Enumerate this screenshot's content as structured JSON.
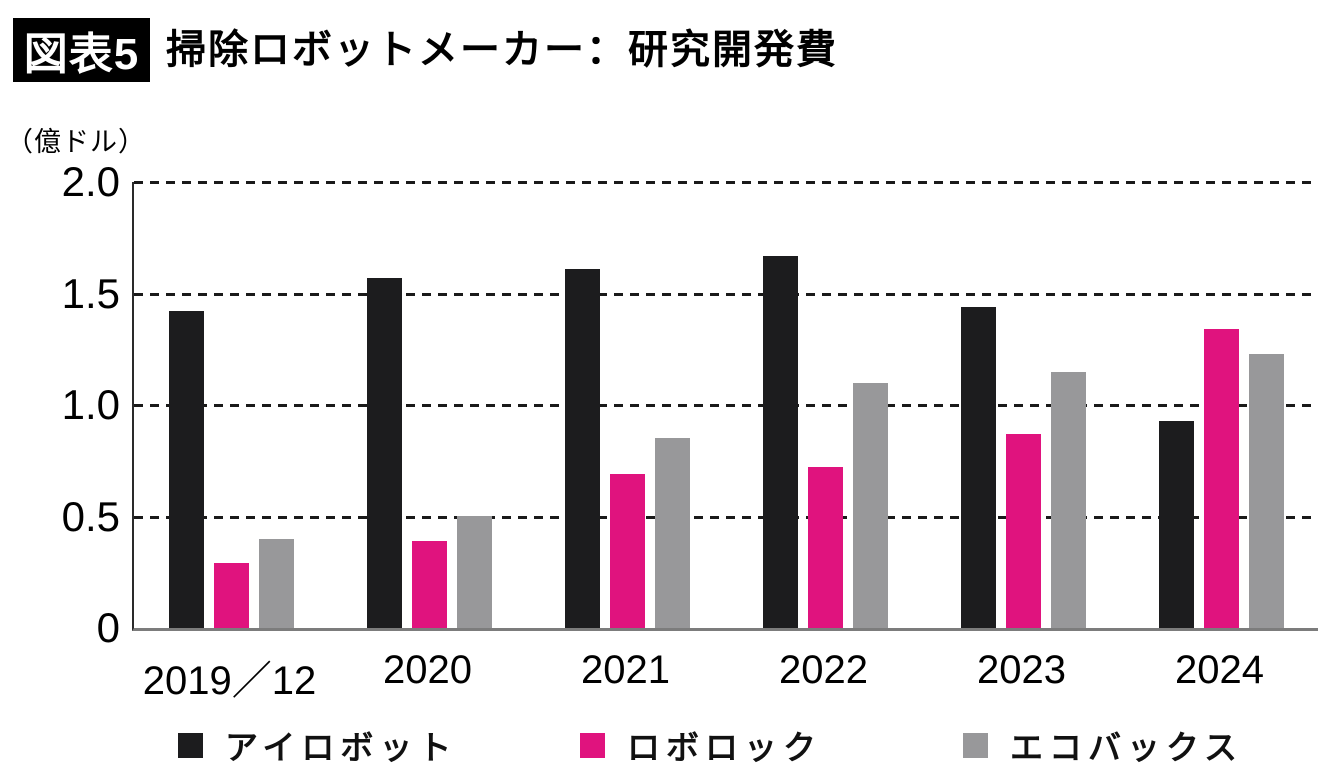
{
  "header": {
    "badge": "図表5",
    "title": "掃除ロボットメーカー：研究開発費"
  },
  "chart_data": {
    "type": "bar",
    "title": "掃除ロボットメーカー：研究開発費",
    "unit_label": "（億ドル）",
    "categories": [
      "2019／12",
      "2020",
      "2021",
      "2022",
      "2023",
      "2024"
    ],
    "series": [
      {
        "name": "アイロボット",
        "color": "#1c1c1e",
        "values": [
          1.42,
          1.57,
          1.61,
          1.67,
          1.44,
          0.93
        ]
      },
      {
        "name": "ロボロック",
        "color": "#e0137e",
        "values": [
          0.29,
          0.39,
          0.69,
          0.72,
          0.87,
          1.34
        ]
      },
      {
        "name": "エコバックス",
        "color": "#98989a",
        "values": [
          0.4,
          0.5,
          0.85,
          1.1,
          1.15,
          1.23
        ]
      }
    ],
    "ylim": [
      0,
      2.0
    ],
    "yticks": [
      0,
      0.5,
      1.0,
      1.5,
      2.0
    ],
    "ytick_labels": [
      "0",
      "0.5",
      "1.0",
      "1.5",
      "2.0"
    ],
    "grid": "horizontal-dashed",
    "legend_position": "bottom",
    "colors": {
      "gridline": "#1a1a1a",
      "baseline": "#7c7c7c",
      "axis": "#2a2a2a"
    }
  }
}
